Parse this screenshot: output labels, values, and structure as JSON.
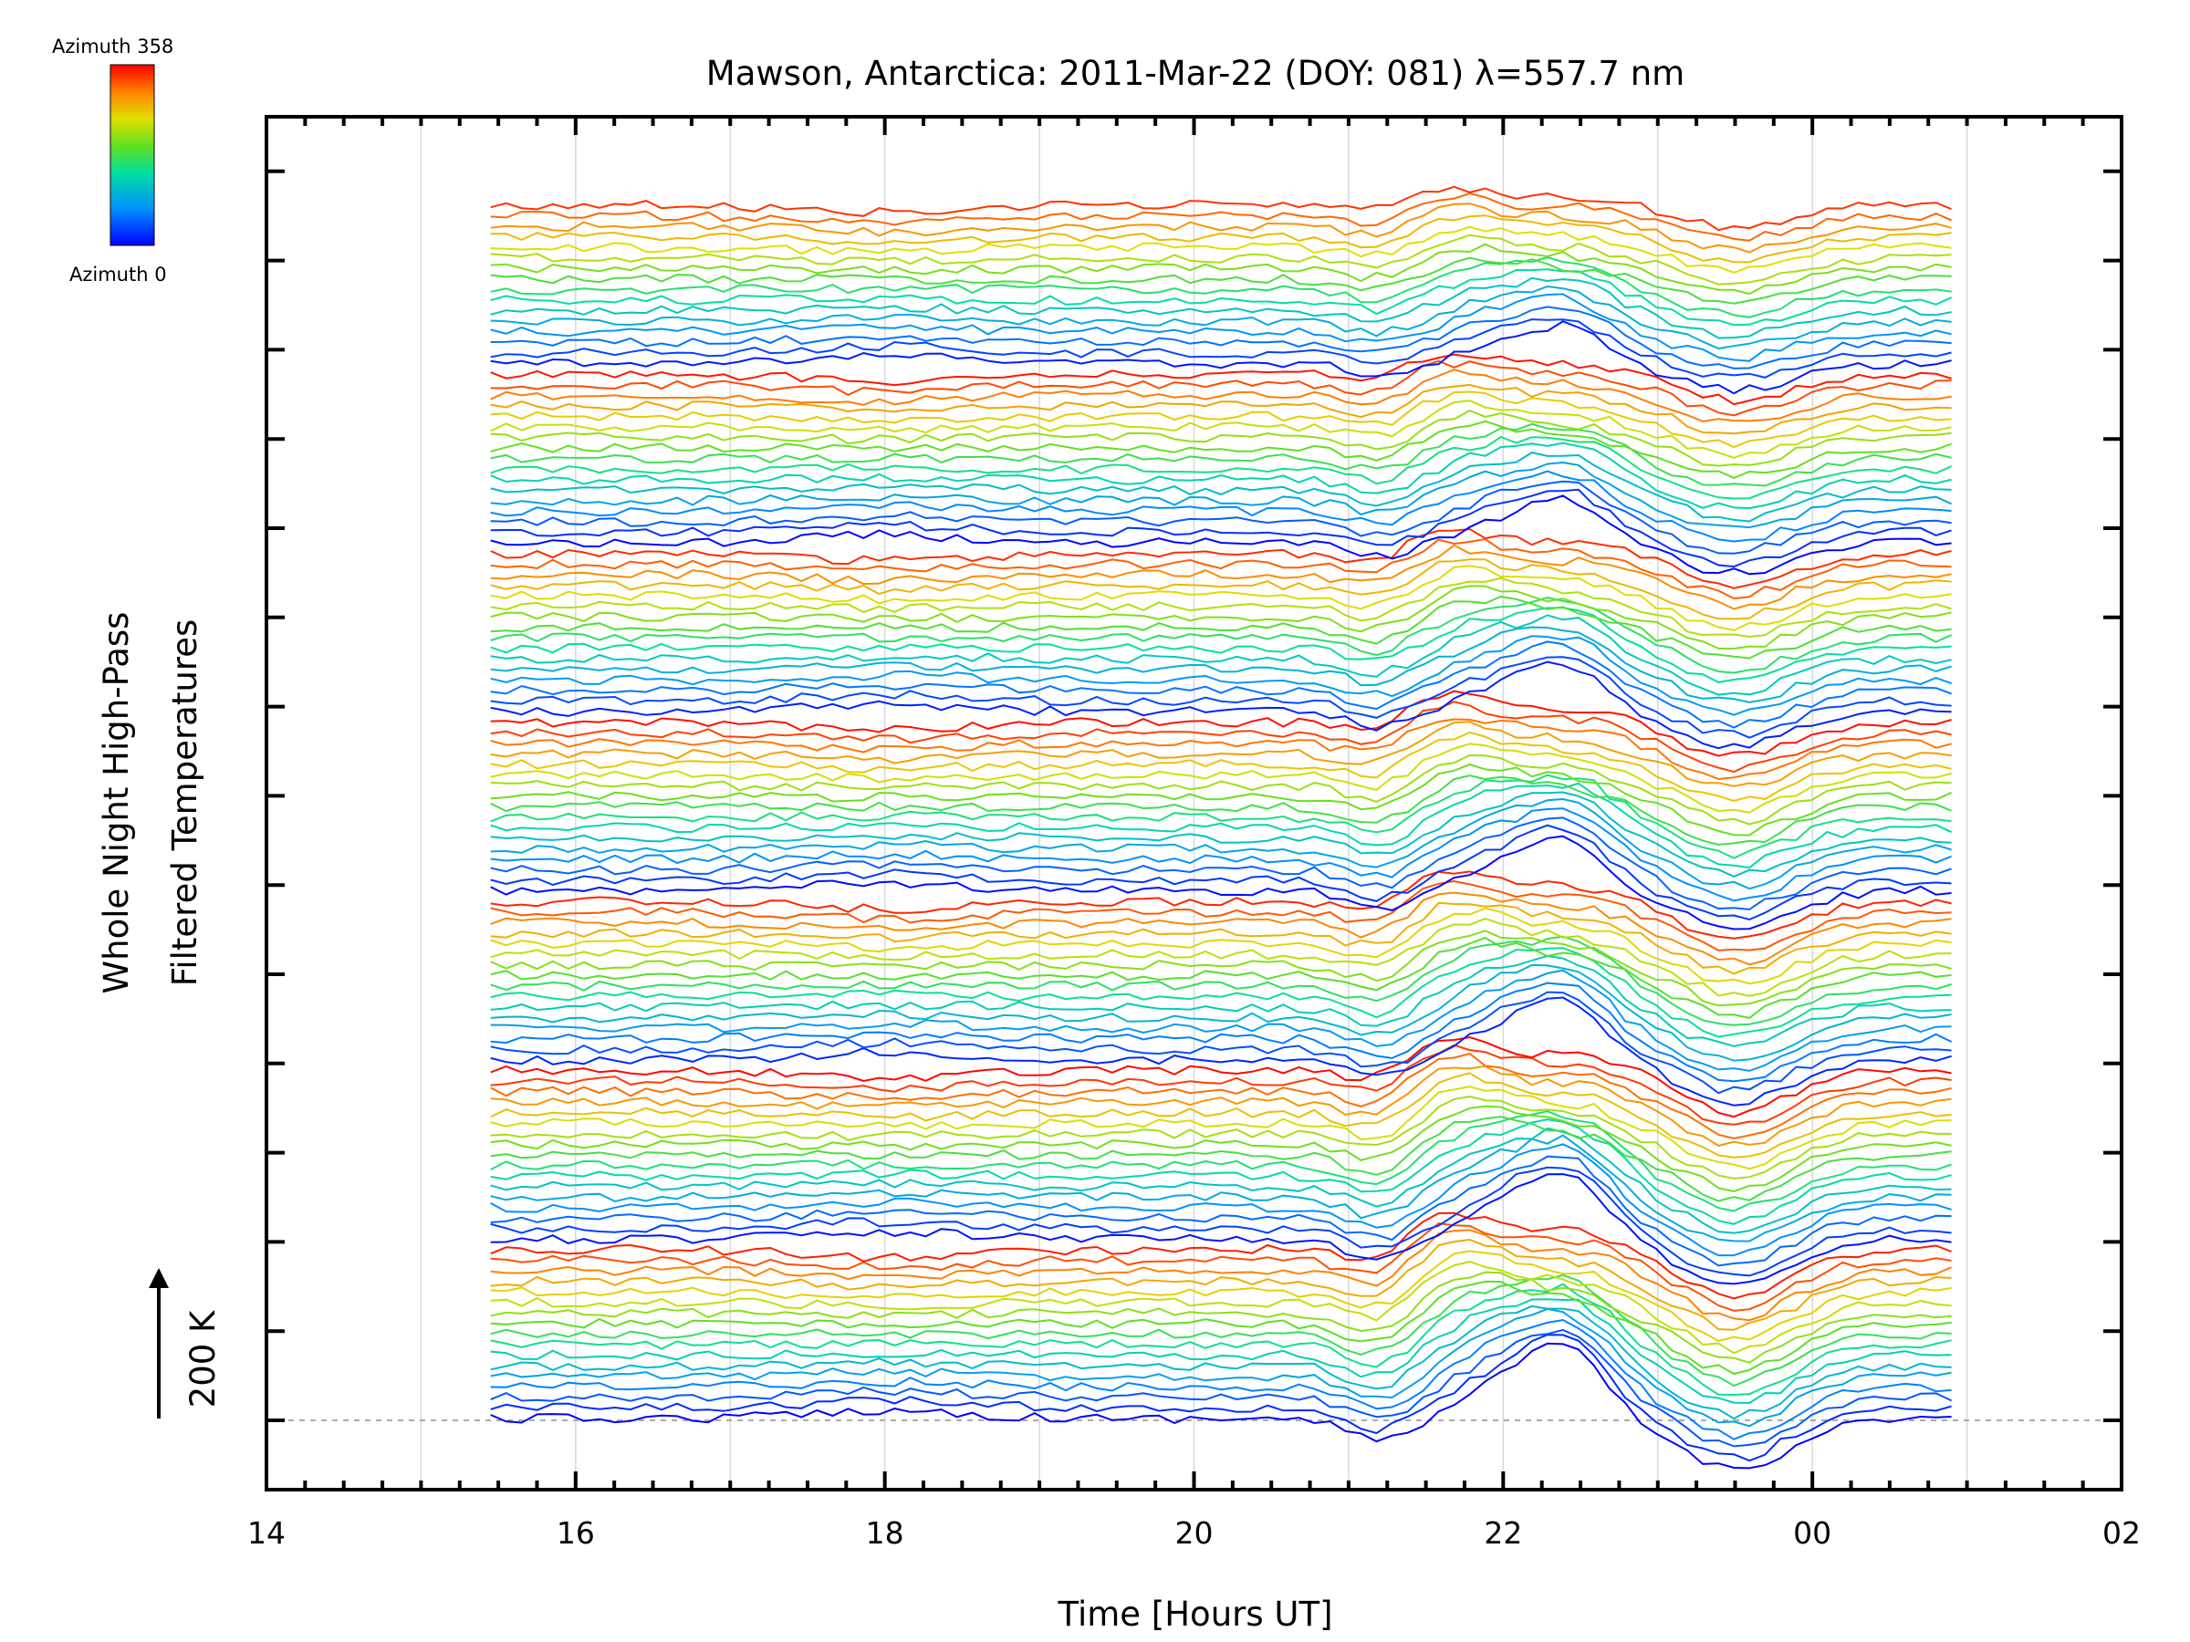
{
  "chart_data": {
    "type": "line",
    "title": "Mawson, Antarctica: 2011-Mar-22 (DOY: 081) λ=557.7 nm",
    "xlabel": "Time [Hours UT]",
    "ylabel_lines": [
      "Whole Night High-Pass",
      "Filtered Temperatures"
    ],
    "x_tick_labels": [
      "14",
      "16",
      "18",
      "20",
      "22",
      "00",
      "02"
    ],
    "xlim_hours": [
      14,
      26
    ],
    "x_data_range_hours": [
      15.45,
      24.9
    ],
    "scale_bar_label": "200 K",
    "grid": "vertical lines every hour",
    "colorbar": {
      "top_label": "Azimuth 358",
      "bottom_label": "Azimuth 0",
      "colormap": "rainbow (blue → cyan → green → yellow → red)"
    },
    "trace_count": 116,
    "trace_groups": 7,
    "colors": {
      "axis": "#000000",
      "grid": "#d8d8d8",
      "baseline": "#aaaaaa"
    }
  }
}
